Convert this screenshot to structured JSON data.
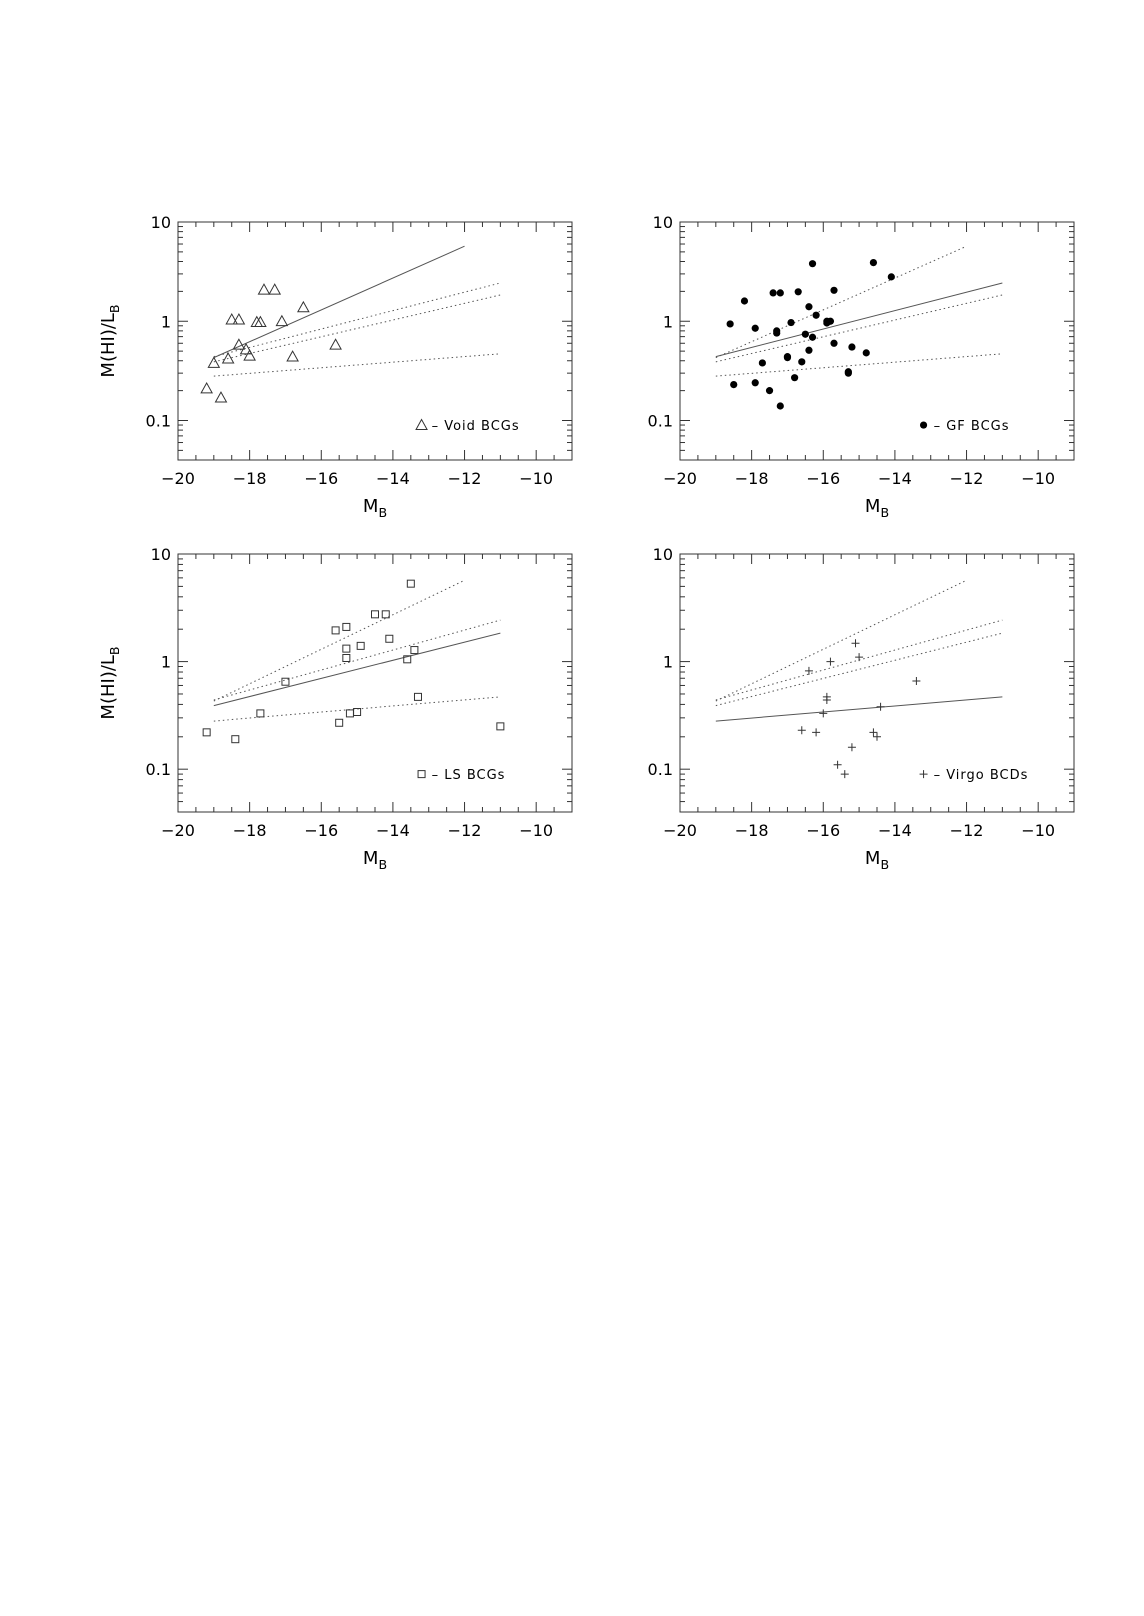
{
  "chart_data": [
    {
      "type": "scatter",
      "panel": "top-left",
      "xlabel": "M_B",
      "ylabel": "M(HI)/L_B",
      "xlim": [
        -20,
        -9
      ],
      "ylim": [
        0.04,
        10
      ],
      "yscale": "log",
      "xticks": [
        -20,
        -18,
        -16,
        -14,
        -12,
        -10
      ],
      "yticks": [
        0.1,
        1,
        10
      ],
      "legend": {
        "placement": "bottom-right",
        "label": "– Void BCGs",
        "marker": "open-triangle"
      },
      "series": [
        {
          "name": "Void BCGs",
          "marker": "open-triangle",
          "x": [
            -19.2,
            -19.0,
            -18.8,
            -18.6,
            -18.5,
            -18.3,
            -18.3,
            -18.1,
            -18.0,
            -17.8,
            -17.7,
            -17.6,
            -17.3,
            -17.1,
            -16.8,
            -16.5,
            -15.6
          ],
          "y": [
            0.21,
            0.38,
            0.17,
            0.42,
            1.04,
            1.04,
            0.58,
            0.52,
            0.45,
            0.98,
            0.98,
            2.08,
            2.08,
            1.0,
            0.44,
            1.38,
            0.58
          ]
        }
      ],
      "fits": [
        {
          "style": "solid",
          "x": [
            -19.0,
            -12.0
          ],
          "y": [
            0.43,
            5.7
          ]
        },
        {
          "style": "dotted",
          "x": [
            -19.0,
            -11.0
          ],
          "y": [
            0.44,
            2.43
          ]
        },
        {
          "style": "dotted",
          "x": [
            -19.0,
            -11.0
          ],
          "y": [
            0.39,
            1.84
          ]
        },
        {
          "style": "dotted",
          "x": [
            -19.0,
            -11.0
          ],
          "y": [
            0.28,
            0.47
          ]
        }
      ]
    },
    {
      "type": "scatter",
      "panel": "top-right",
      "xlabel": "M_B",
      "ylabel": "",
      "xlim": [
        -20,
        -9
      ],
      "ylim": [
        0.04,
        10
      ],
      "yscale": "log",
      "xticks": [
        -20,
        -18,
        -16,
        -14,
        -12,
        -10
      ],
      "yticks": [
        0.1,
        1,
        10
      ],
      "legend": {
        "placement": "bottom-right",
        "label": "– GF BCGs",
        "marker": "filled-circle"
      },
      "series": [
        {
          "name": "GF BCGs",
          "marker": "filled-circle",
          "x": [
            -18.6,
            -18.5,
            -18.2,
            -17.9,
            -17.9,
            -17.7,
            -17.5,
            -17.4,
            -17.3,
            -17.3,
            -17.2,
            -17.2,
            -17.0,
            -17.0,
            -16.9,
            -16.8,
            -16.7,
            -16.6,
            -16.5,
            -16.4,
            -16.4,
            -16.3,
            -16.3,
            -16.2,
            -15.9,
            -15.9,
            -15.8,
            -15.7,
            -15.7,
            -15.3,
            -15.3,
            -15.2,
            -14.8,
            -14.6,
            -14.1
          ],
          "y": [
            0.94,
            0.23,
            1.6,
            0.85,
            0.24,
            0.38,
            0.2,
            1.93,
            0.8,
            0.76,
            0.14,
            1.93,
            0.43,
            0.44,
            0.97,
            0.27,
            1.98,
            0.39,
            0.74,
            1.4,
            0.51,
            3.8,
            0.69,
            1.15,
            1.0,
            0.96,
            1.0,
            2.05,
            0.6,
            0.3,
            0.31,
            0.55,
            0.48,
            3.9,
            2.8
          ]
        }
      ],
      "fits": [
        {
          "style": "solid",
          "x": [
            -19.0,
            -11.0
          ],
          "y": [
            0.44,
            2.43
          ]
        },
        {
          "style": "dotted",
          "x": [
            -19.0,
            -12.0
          ],
          "y": [
            0.43,
            5.7
          ]
        },
        {
          "style": "dotted",
          "x": [
            -19.0,
            -11.0
          ],
          "y": [
            0.39,
            1.84
          ]
        },
        {
          "style": "dotted",
          "x": [
            -19.0,
            -11.0
          ],
          "y": [
            0.28,
            0.47
          ]
        }
      ]
    },
    {
      "type": "scatter",
      "panel": "bottom-left",
      "xlabel": "M_B",
      "ylabel": "M(HI)/L_B",
      "xlim": [
        -20,
        -9
      ],
      "ylim": [
        0.04,
        10
      ],
      "yscale": "log",
      "xticks": [
        -20,
        -18,
        -16,
        -14,
        -12,
        -10
      ],
      "yticks": [
        0.1,
        1,
        10
      ],
      "legend": {
        "placement": "bottom-right",
        "label": "– LS BCGs",
        "marker": "open-square"
      },
      "series": [
        {
          "name": "LS BCGs",
          "marker": "open-square",
          "x": [
            -19.2,
            -18.4,
            -17.7,
            -17.0,
            -15.6,
            -15.5,
            -15.3,
            -15.3,
            -15.3,
            -15.2,
            -15.0,
            -14.9,
            -14.5,
            -14.2,
            -14.1,
            -13.6,
            -13.5,
            -13.4,
            -13.3,
            -11.0
          ],
          "y": [
            0.22,
            0.19,
            0.33,
            0.65,
            1.95,
            0.27,
            2.1,
            1.32,
            1.08,
            0.33,
            0.34,
            1.4,
            2.75,
            2.75,
            1.63,
            1.05,
            5.3,
            1.28,
            0.47,
            0.25
          ]
        }
      ],
      "fits": [
        {
          "style": "solid",
          "x": [
            -19.0,
            -11.0
          ],
          "y": [
            0.39,
            1.84
          ]
        },
        {
          "style": "dotted",
          "x": [
            -19.0,
            -12.0
          ],
          "y": [
            0.43,
            5.7
          ]
        },
        {
          "style": "dotted",
          "x": [
            -19.0,
            -11.0
          ],
          "y": [
            0.44,
            2.43
          ]
        },
        {
          "style": "dotted",
          "x": [
            -19.0,
            -11.0
          ],
          "y": [
            0.28,
            0.47
          ]
        }
      ]
    },
    {
      "type": "scatter",
      "panel": "bottom-right",
      "xlabel": "M_B",
      "ylabel": "",
      "xlim": [
        -20,
        -9
      ],
      "ylim": [
        0.04,
        10
      ],
      "yscale": "log",
      "xticks": [
        -20,
        -18,
        -16,
        -14,
        -12,
        -10
      ],
      "yticks": [
        0.1,
        1,
        10
      ],
      "legend": {
        "placement": "bottom-right",
        "label": "– Virgo BCDs",
        "marker": "plus"
      },
      "series": [
        {
          "name": "Virgo BCDs",
          "marker": "plus",
          "x": [
            -16.6,
            -16.4,
            -16.2,
            -16.0,
            -15.9,
            -15.9,
            -15.8,
            -15.6,
            -15.4,
            -15.2,
            -15.1,
            -15.0,
            -14.6,
            -14.5,
            -14.4,
            -13.4
          ],
          "y": [
            0.23,
            0.82,
            0.22,
            0.33,
            0.44,
            0.47,
            1.0,
            0.11,
            0.09,
            0.16,
            1.48,
            1.1,
            0.22,
            0.2,
            0.38,
            0.66
          ]
        }
      ],
      "fits": [
        {
          "style": "solid",
          "x": [
            -19.0,
            -11.0
          ],
          "y": [
            0.28,
            0.47
          ]
        },
        {
          "style": "dotted",
          "x": [
            -19.0,
            -12.0
          ],
          "y": [
            0.43,
            5.7
          ]
        },
        {
          "style": "dotted",
          "x": [
            -19.0,
            -11.0
          ],
          "y": [
            0.44,
            2.43
          ]
        },
        {
          "style": "dotted",
          "x": [
            -19.0,
            -11.0
          ],
          "y": [
            0.39,
            1.84
          ]
        }
      ]
    }
  ]
}
